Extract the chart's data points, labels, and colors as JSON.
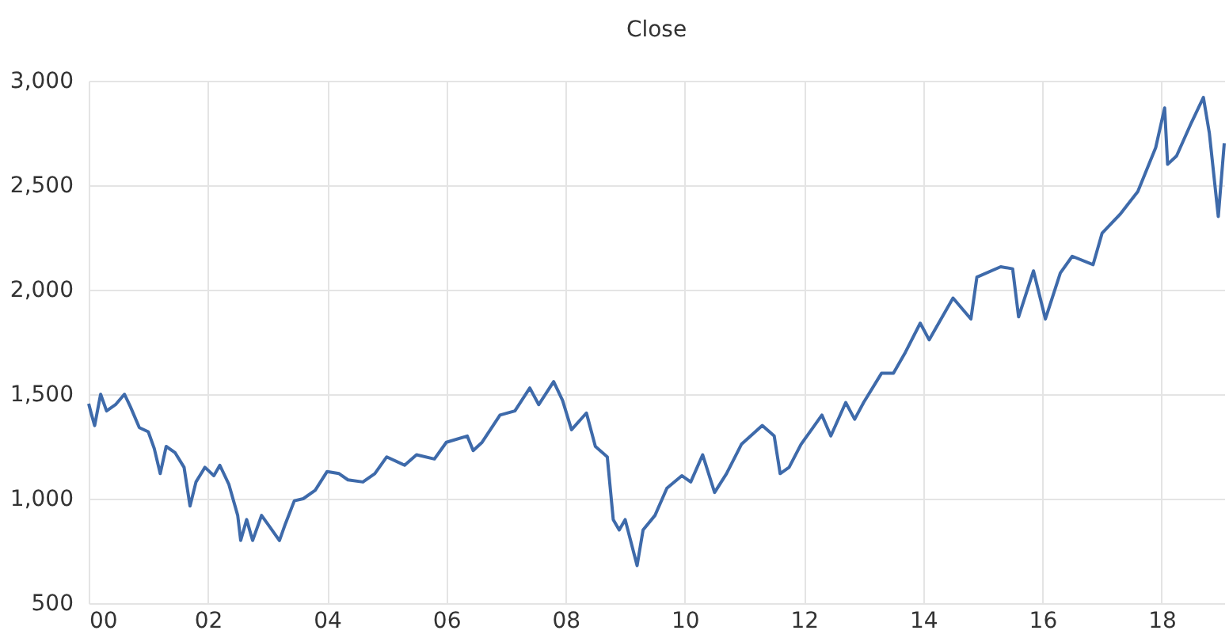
{
  "chart_data": {
    "type": "line",
    "title": "Close",
    "x": [
      2000.0,
      2000.05,
      2000.1,
      2000.2,
      2000.3,
      2000.45,
      2000.6,
      2000.7,
      2000.85,
      2001.0,
      2001.1,
      2001.2,
      2001.3,
      2001.45,
      2001.6,
      2001.7,
      2001.8,
      2001.95,
      2002.1,
      2002.2,
      2002.35,
      2002.5,
      2002.55,
      2002.65,
      2002.75,
      2002.9,
      2003.0,
      2003.2,
      2003.3,
      2003.45,
      2003.6,
      2003.8,
      2004.0,
      2004.2,
      2004.35,
      2004.6,
      2004.8,
      2005.0,
      2005.3,
      2005.5,
      2005.8,
      2006.0,
      2006.35,
      2006.45,
      2006.6,
      2006.9,
      2007.15,
      2007.4,
      2007.55,
      2007.8,
      2007.95,
      2008.1,
      2008.35,
      2008.5,
      2008.7,
      2008.8,
      2008.9,
      2009.0,
      2009.2,
      2009.3,
      2009.5,
      2009.7,
      2009.95,
      2010.1,
      2010.3,
      2010.5,
      2010.7,
      2010.95,
      2011.3,
      2011.5,
      2011.6,
      2011.75,
      2011.95,
      2012.3,
      2012.45,
      2012.7,
      2012.85,
      2013.0,
      2013.3,
      2013.5,
      2013.7,
      2013.95,
      2014.1,
      2014.5,
      2014.8,
      2014.9,
      2015.3,
      2015.5,
      2015.6,
      2015.85,
      2016.05,
      2016.3,
      2016.5,
      2016.85,
      2017.0,
      2017.3,
      2017.6,
      2017.9,
      2018.05,
      2018.1,
      2018.25,
      2018.5,
      2018.7,
      2018.8,
      2018.95,
      2019.05
    ],
    "series": [
      {
        "color": "#3e6aaa",
        "values": [
          1455,
          1400,
          1350,
          1500,
          1420,
          1450,
          1500,
          1440,
          1340,
          1320,
          1240,
          1120,
          1250,
          1220,
          1150,
          965,
          1080,
          1150,
          1110,
          1160,
          1070,
          920,
          800,
          900,
          800,
          920,
          880,
          800,
          880,
          990,
          1000,
          1040,
          1130,
          1120,
          1090,
          1080,
          1120,
          1200,
          1160,
          1210,
          1190,
          1270,
          1300,
          1230,
          1270,
          1400,
          1420,
          1530,
          1450,
          1560,
          1470,
          1330,
          1410,
          1250,
          1200,
          900,
          850,
          900,
          680,
          850,
          920,
          1050,
          1110,
          1080,
          1210,
          1030,
          1120,
          1260,
          1350,
          1300,
          1120,
          1150,
          1260,
          1400,
          1300,
          1460,
          1380,
          1460,
          1600,
          1600,
          1700,
          1840,
          1760,
          1960,
          1860,
          2060,
          2110,
          2100,
          1870,
          2090,
          1860,
          2080,
          2160,
          2120,
          2270,
          2360,
          2470,
          2680,
          2870,
          2600,
          2640,
          2800,
          2920,
          2750,
          2350,
          2700
        ]
      }
    ],
    "xlim": [
      2000,
      2019.05
    ],
    "xticks": [
      {
        "value": 2000,
        "label": "00"
      },
      {
        "value": 2002,
        "label": "02"
      },
      {
        "value": 2004,
        "label": "04"
      },
      {
        "value": 2006,
        "label": "06"
      },
      {
        "value": 2008,
        "label": "08"
      },
      {
        "value": 2010,
        "label": "10"
      },
      {
        "value": 2012,
        "label": "12"
      },
      {
        "value": 2014,
        "label": "14"
      },
      {
        "value": 2016,
        "label": "16"
      },
      {
        "value": 2018,
        "label": "18"
      }
    ],
    "ylim": [
      500,
      3000
    ],
    "yticks": [
      {
        "value": 500,
        "label": "500"
      },
      {
        "value": 1000,
        "label": "1,000"
      },
      {
        "value": 1500,
        "label": "1,500"
      },
      {
        "value": 2000,
        "label": "2,000"
      },
      {
        "value": 2500,
        "label": "2,500"
      },
      {
        "value": 3000,
        "label": "3,000"
      }
    ],
    "grid": true,
    "marker": "none",
    "line_style": "solid"
  }
}
